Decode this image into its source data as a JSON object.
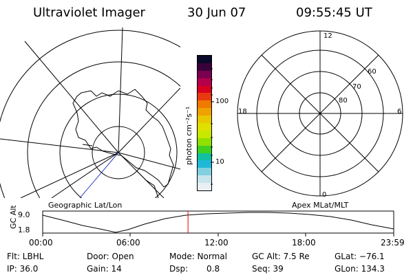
{
  "header": {
    "instrument": "Ultraviolet Imager",
    "date": "30 Jun 07",
    "time": "09:55:45 UT"
  },
  "colorbar": {
    "unit_label": "photon cm⁻²s⁻¹",
    "ticks": [
      "100",
      "10"
    ],
    "colors": [
      "#0a0a2a",
      "#3a003a",
      "#7a0050",
      "#b4004a",
      "#d80020",
      "#e83a10",
      "#f07a00",
      "#f0a000",
      "#e8c800",
      "#e0e000",
      "#c8e800",
      "#90e000",
      "#40d020",
      "#10c0a0",
      "#20b8d8",
      "#80d0e0",
      "#c8e4ec",
      "#e8f0f4"
    ]
  },
  "left_map": {
    "caption": "Geographic Lat/Lon"
  },
  "right_map": {
    "caption": "Apex MLat/MLT",
    "mlt_labels": [
      "12",
      "18",
      "6",
      "0"
    ],
    "lat_labels": [
      "60",
      "70",
      "80"
    ]
  },
  "altitude_plot": {
    "ylabel": "GC Alt",
    "yticks": [
      "9.0",
      "1.8"
    ],
    "xticks": [
      "00:00",
      "06:00",
      "12:00",
      "18:00",
      "23:59"
    ],
    "current_time_fraction": 0.414,
    "marker_color": "#e00000"
  },
  "status": {
    "filter": "Flt: LBHL",
    "ip": "IP: 36.0",
    "door": "Door: Open",
    "gain": "Gain: 14",
    "mode": "Mode: Normal",
    "dsp_label": "Dsp:",
    "dsp_value": "0.8",
    "gc_alt": "GC Alt: 7.5 Re",
    "seq": "Seq: 39",
    "glat": "GLat: −76.1",
    "glon": "GLon: 134.3"
  }
}
